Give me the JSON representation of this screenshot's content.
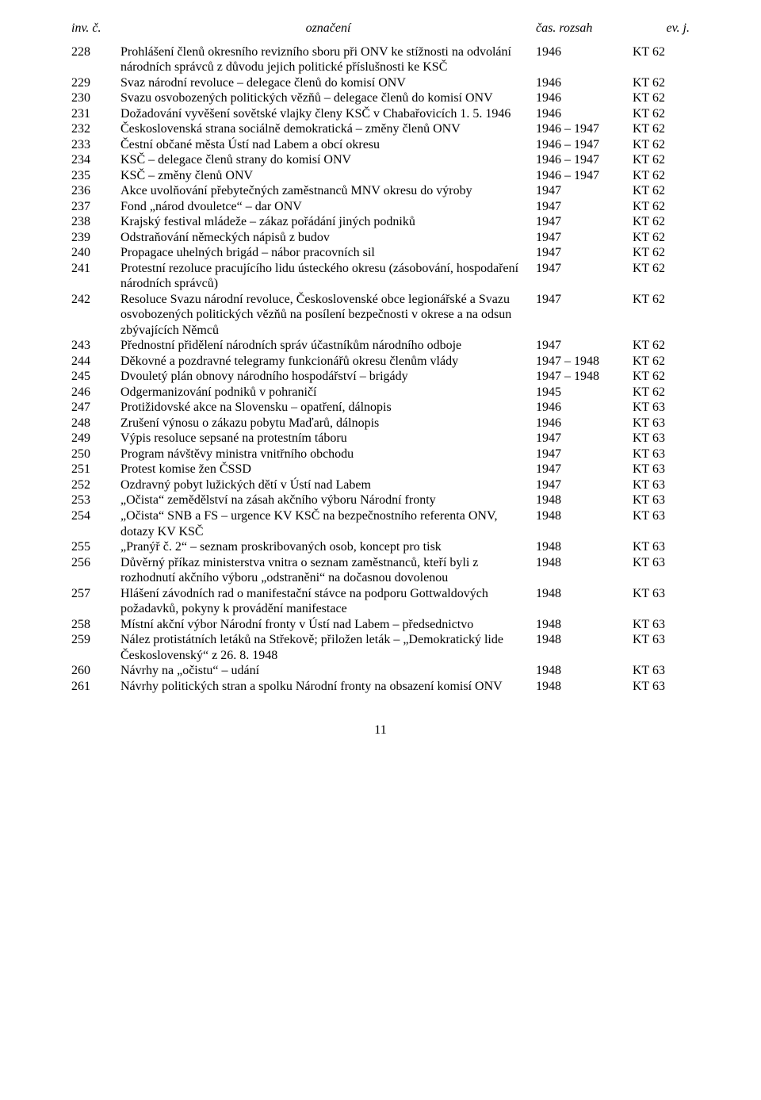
{
  "header": {
    "inv": "inv. č.",
    "oznaceni": "označení",
    "cas": "čas. rozsah",
    "ev": "ev. j."
  },
  "rows": [
    {
      "n": "228",
      "t": "Prohlášení členů okresního revizního sboru při ONV ke stížnosti na odvolání národních správců z důvodu jejich politické příslušnosti ke KSČ",
      "y": "1946",
      "k": "KT 62"
    },
    {
      "n": "229",
      "t": "Svaz národní revoluce – delegace členů do komisí ONV",
      "y": "1946",
      "k": "KT 62"
    },
    {
      "n": "230",
      "t": "Svazu osvobozených politických vězňů – delegace členů do komisí ONV",
      "y": "1946",
      "k": "KT 62"
    },
    {
      "n": "231",
      "t": "Dožadování vyvěšení sovětské vlajky členy KSČ v Chabařovicích 1. 5. 1946",
      "y": "1946",
      "k": "KT 62"
    },
    {
      "n": "232",
      "t": "Československá strana sociálně demokratická – změny členů ONV",
      "y": "1946 – 1947",
      "k": "KT 62"
    },
    {
      "n": "233",
      "t": "Čestní občané města Ústí nad Labem a obcí okresu",
      "y": "1946 – 1947",
      "k": "KT 62"
    },
    {
      "n": "234",
      "t": "KSČ – delegace členů strany do komisí ONV",
      "y": "1946 – 1947",
      "k": "KT 62"
    },
    {
      "n": "235",
      "t": "KSČ – změny členů ONV",
      "y": "1946 – 1947",
      "k": "KT 62"
    },
    {
      "n": "236",
      "t": "Akce uvolňování přebytečných zaměstnanců MNV okresu do výroby",
      "y": "1947",
      "k": "KT 62"
    },
    {
      "n": "237",
      "t": "Fond „národ dvouletce“ – dar ONV",
      "y": "1947",
      "k": "KT 62"
    },
    {
      "n": "238",
      "t": "Krajský festival mládeže – zákaz pořádání jiných podniků",
      "y": "1947",
      "k": "KT 62"
    },
    {
      "n": "239",
      "t": "Odstraňování německých nápisů z budov",
      "y": "1947",
      "k": "KT 62"
    },
    {
      "n": "240",
      "t": "Propagace uhelných brigád – nábor pracovních sil",
      "y": "1947",
      "k": "KT 62"
    },
    {
      "n": "241",
      "t": "Protestní rezoluce pracujícího lidu ústeckého okresu (zásobování, hospodaření národních správců)",
      "y": "1947",
      "k": "KT 62"
    },
    {
      "n": "242",
      "t": "Resoluce Svazu národní revoluce, Československé obce legionářské a Svazu osvobozených politických vězňů na posílení bezpečnosti v okrese a na odsun zbývajících Němců",
      "y": "1947",
      "k": "KT 62"
    },
    {
      "n": "243",
      "t": "Přednostní přidělení národních správ účastníkům národního odboje",
      "y": "1947",
      "k": "KT 62"
    },
    {
      "n": "244",
      "t": "Děkovné a pozdravné telegramy funkcionářů okresu členům vlády",
      "y": "1947 – 1948",
      "k": "KT 62"
    },
    {
      "n": "245",
      "t": "Dvouletý plán obnovy národního hospodářství – brigády",
      "y": "1947 – 1948",
      "k": "KT 62"
    },
    {
      "n": "246",
      "t": "Odgermanizování podniků v pohraničí",
      "y": "1945",
      "k": "KT 62"
    },
    {
      "n": "247",
      "t": "Protižidovské akce na Slovensku – opatření, dálnopis",
      "y": "1946",
      "k": "KT 63"
    },
    {
      "n": "248",
      "t": "Zrušení výnosu o zákazu pobytu Maďarů, dálnopis",
      "y": "1946",
      "k": "KT 63"
    },
    {
      "n": "249",
      "t": "Výpis resoluce sepsané na protestním táboru",
      "y": "1947",
      "k": "KT 63"
    },
    {
      "n": "250",
      "t": "Program návštěvy ministra vnitřního obchodu",
      "y": "1947",
      "k": "KT 63"
    },
    {
      "n": "251",
      "t": "Protest komise žen ČSSD",
      "y": "1947",
      "k": "KT 63"
    },
    {
      "n": "252",
      "t": "Ozdravný pobyt lužických dětí v Ústí nad Labem",
      "y": "1947",
      "k": "KT 63"
    },
    {
      "n": "253",
      "t": "„Očista“ zemědělství na zásah akčního výboru Národní fronty",
      "y": "1948",
      "k": "KT 63"
    },
    {
      "n": "254",
      "t": "„Očista“ SNB a FS – urgence KV KSČ na bezpečnostního referenta ONV, dotazy KV KSČ",
      "y": "1948",
      "k": "KT 63"
    },
    {
      "n": "255",
      "t": "„Pranýř č. 2“ – seznam proskribovaných osob, koncept pro tisk",
      "y": "1948",
      "k": "KT 63"
    },
    {
      "n": "256",
      "t": "Důvěrný příkaz ministerstva vnitra o seznam zaměstnanců, kteří byli z rozhodnutí akčního výboru „odstraněni“ na dočasnou dovolenou",
      "y": "1948",
      "k": "KT 63"
    },
    {
      "n": "257",
      "t": "Hlášení závodních rad o manifestační stávce na podporu Gottwaldových požadavků, pokyny k provádění manifestace",
      "y": "1948",
      "k": "KT 63"
    },
    {
      "n": "258",
      "t": "Místní akční výbor Národní fronty v Ústí nad Labem – předsednictvo",
      "y": "1948",
      "k": "KT 63"
    },
    {
      "n": "259",
      "t": "Nález protistátních letáků na Střekově; přiložen leták – „Demokratický lide Československý“ z 26. 8. 1948",
      "y": "1948",
      "k": "KT 63"
    },
    {
      "n": "260",
      "t": "Návrhy na „očistu“ – udání",
      "y": "1948",
      "k": "KT 63"
    },
    {
      "n": "261",
      "t": "Návrhy politických stran a spolku Národní fronty na obsazení komisí ONV",
      "y": "1948",
      "k": "KT 63"
    }
  ],
  "page_number": "11"
}
